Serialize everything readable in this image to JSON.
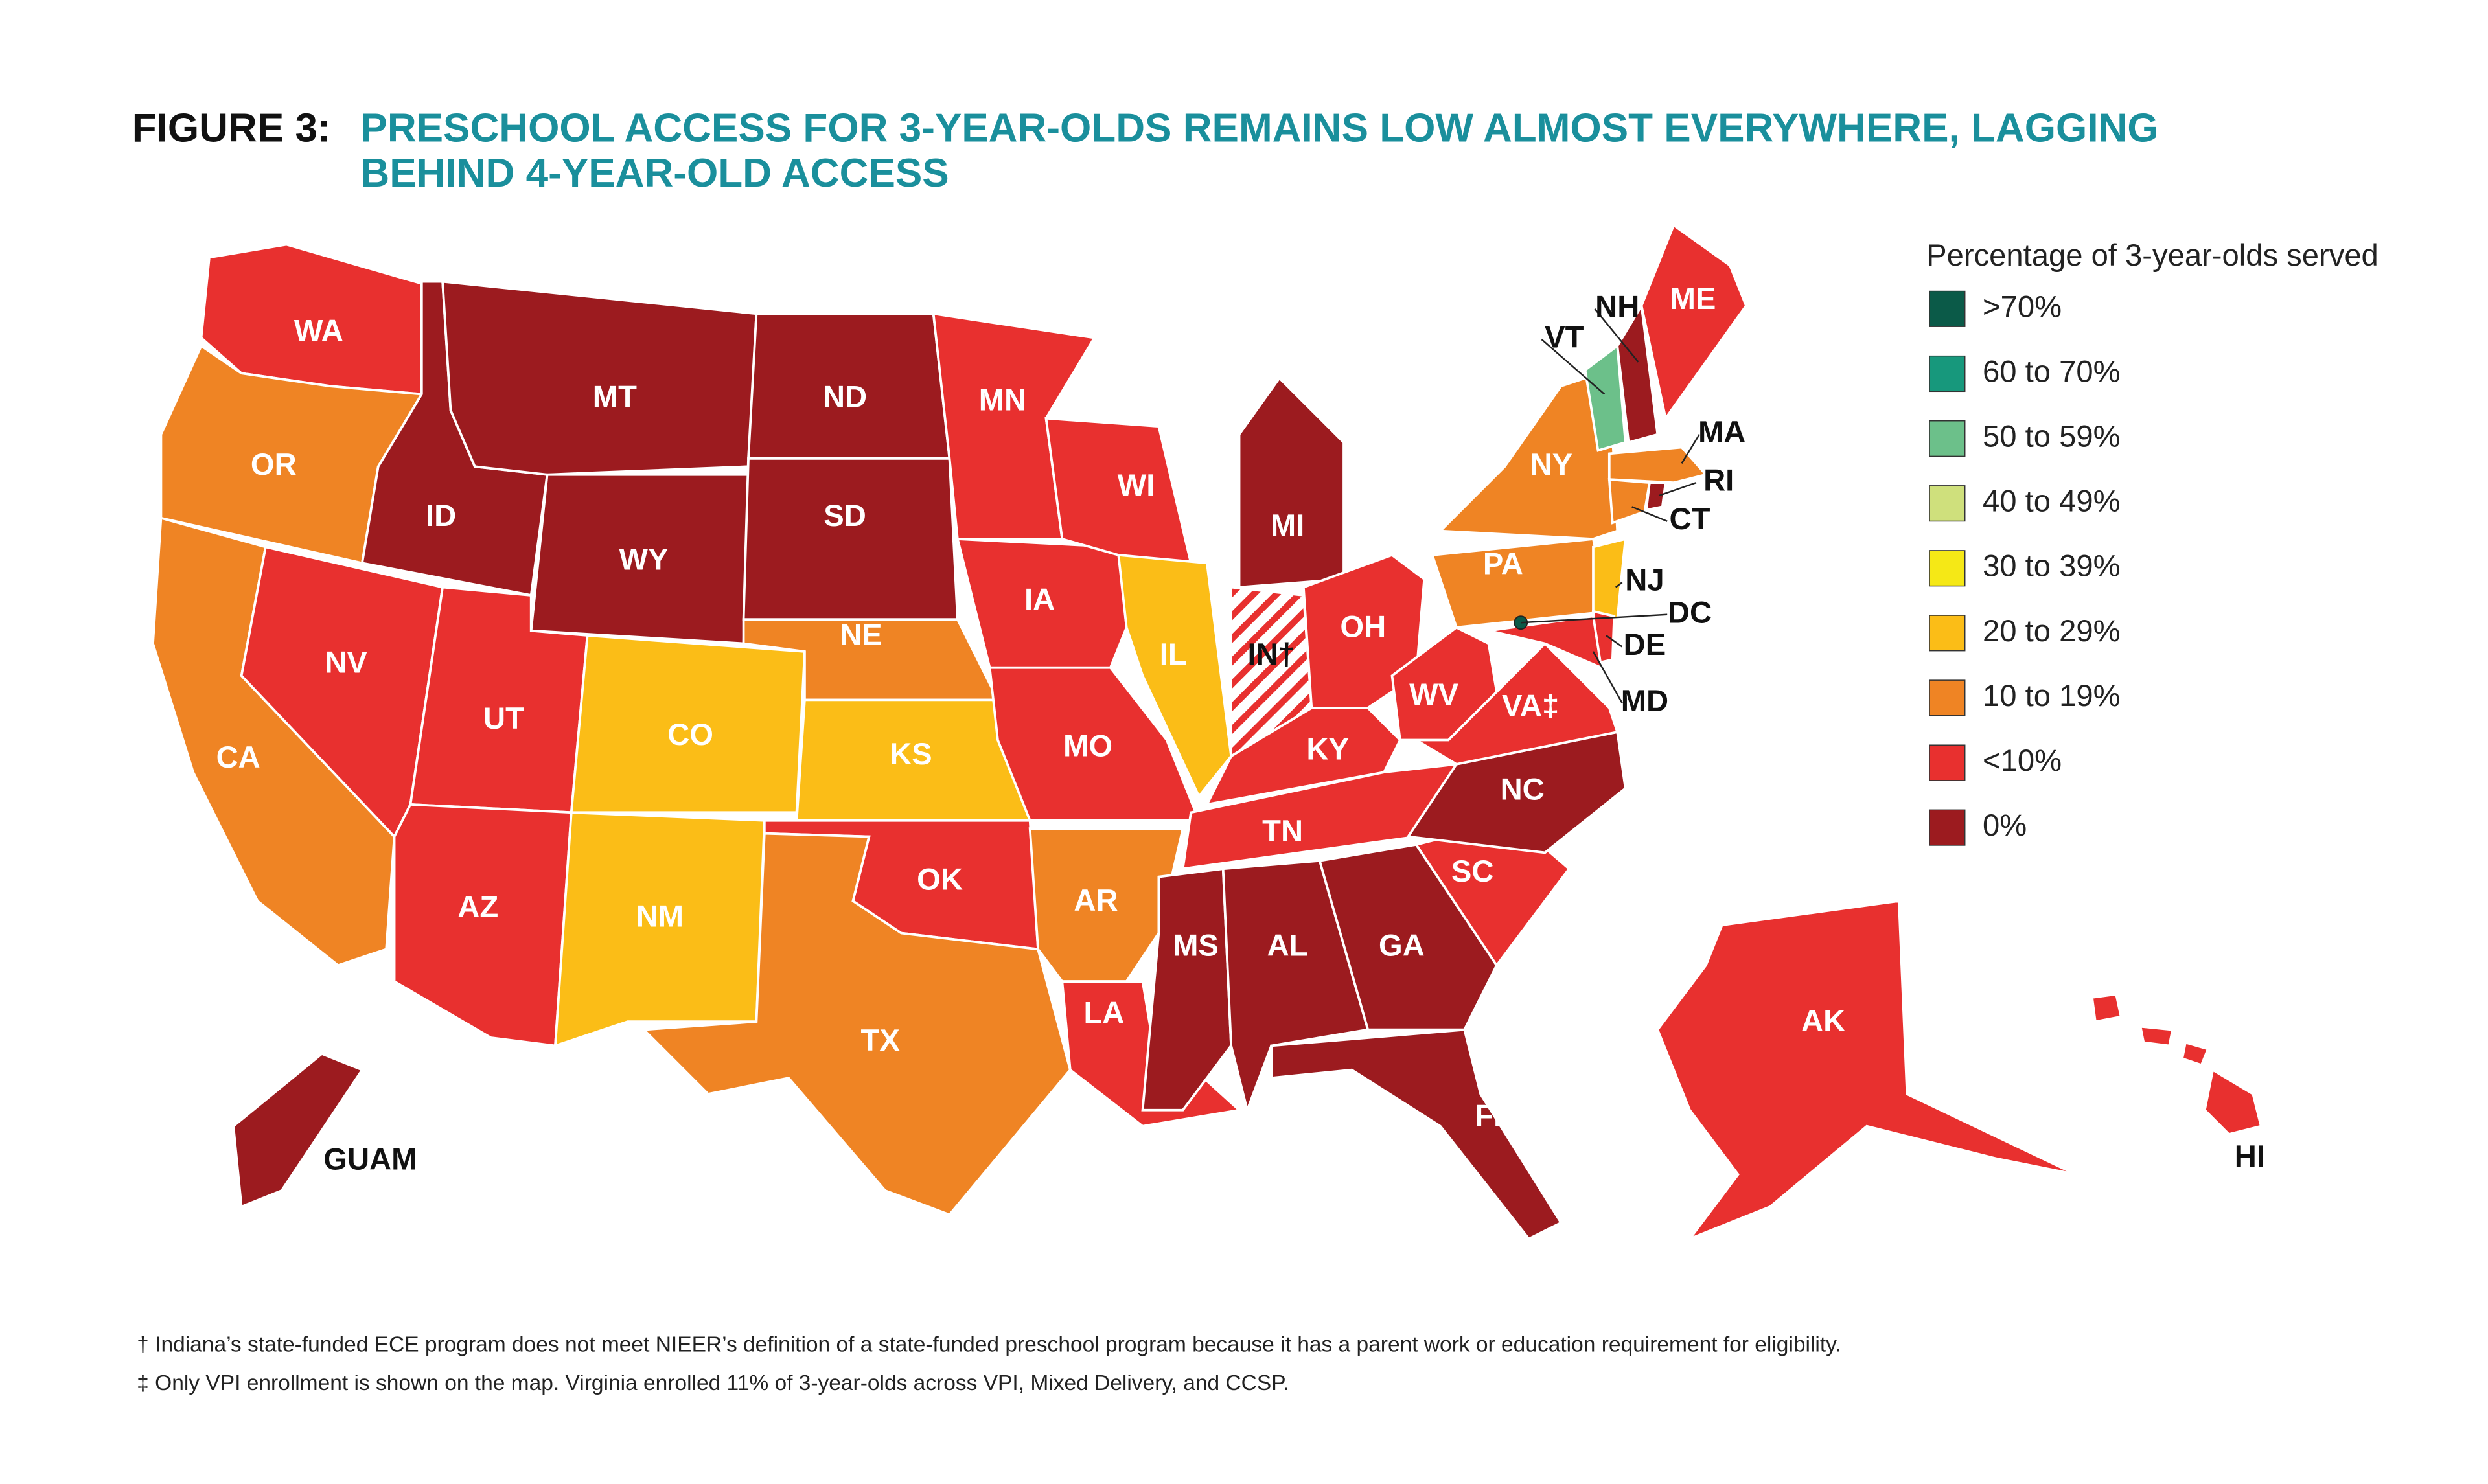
{
  "header": {
    "figure_label": "FIGURE 3:",
    "title_lines": [
      "PRESCHOOL ACCESS FOR 3-YEAR-OLDS REMAINS LOW ALMOST EVERYWHERE, LAGGING",
      "BEHIND 4-YEAR-OLD ACCESS"
    ],
    "title_color": "#1a8f9c"
  },
  "legend": {
    "title": "Percentage of 3-year-olds served",
    "items": [
      {
        "label": ">70%",
        "color": "#0b5a48"
      },
      {
        "label": "60 to 70%",
        "color": "#17987c"
      },
      {
        "label": "50 to 59%",
        "color": "#6cc08a"
      },
      {
        "label": "40 to 49%",
        "color": "#cfe07c"
      },
      {
        "label": "30 to 39%",
        "color": "#f5e816"
      },
      {
        "label": "20 to 29%",
        "color": "#fbbd17"
      },
      {
        "label": "10 to 19%",
        "color": "#ef8424"
      },
      {
        "label": "<10%",
        "color": "#e8302f"
      },
      {
        "label": "0%",
        "color": "#9c1b1f"
      }
    ]
  },
  "states": [
    {
      "label": "WA",
      "color": "#e8302f"
    },
    {
      "label": "OR",
      "color": "#ef8424"
    },
    {
      "label": "CA",
      "color": "#ef8424"
    },
    {
      "label": "NV",
      "color": "#e8302f"
    },
    {
      "label": "ID",
      "color": "#9c1b1f"
    },
    {
      "label": "MT",
      "color": "#9c1b1f"
    },
    {
      "label": "WY",
      "color": "#9c1b1f"
    },
    {
      "label": "UT",
      "color": "#e8302f"
    },
    {
      "label": "AZ",
      "color": "#e8302f"
    },
    {
      "label": "CO",
      "color": "#fbbd17"
    },
    {
      "label": "NM",
      "color": "#fbbd17"
    },
    {
      "label": "ND",
      "color": "#9c1b1f"
    },
    {
      "label": "SD",
      "color": "#9c1b1f"
    },
    {
      "label": "NE",
      "color": "#ef8424"
    },
    {
      "label": "KS",
      "color": "#fbbd17"
    },
    {
      "label": "OK",
      "color": "#e8302f"
    },
    {
      "label": "TX",
      "color": "#ef8424"
    },
    {
      "label": "MN",
      "color": "#e8302f"
    },
    {
      "label": "IA",
      "color": "#e8302f"
    },
    {
      "label": "MO",
      "color": "#e8302f"
    },
    {
      "label": "AR",
      "color": "#ef8424"
    },
    {
      "label": "LA",
      "color": "#e8302f"
    },
    {
      "label": "WI",
      "color": "#e8302f"
    },
    {
      "label": "IL",
      "color": "#fbbd17"
    },
    {
      "label": "IN†",
      "color": "#e8302f",
      "pattern": "hatch"
    },
    {
      "label": "MI",
      "color": "#9c1b1f"
    },
    {
      "label": "OH",
      "color": "#e8302f"
    },
    {
      "label": "KY",
      "color": "#e8302f"
    },
    {
      "label": "TN",
      "color": "#e8302f"
    },
    {
      "label": "MS",
      "color": "#9c1b1f"
    },
    {
      "label": "AL",
      "color": "#9c1b1f"
    },
    {
      "label": "GA",
      "color": "#9c1b1f"
    },
    {
      "label": "FL",
      "color": "#9c1b1f"
    },
    {
      "label": "SC",
      "color": "#e8302f"
    },
    {
      "label": "NC",
      "color": "#9c1b1f"
    },
    {
      "label": "VA‡",
      "color": "#e8302f"
    },
    {
      "label": "WV",
      "color": "#e8302f"
    },
    {
      "label": "PA",
      "color": "#ef8424"
    },
    {
      "label": "NY",
      "color": "#ef8424"
    },
    {
      "label": "NJ",
      "color": "#fbbd17"
    },
    {
      "label": "DE",
      "color": "#e8302f"
    },
    {
      "label": "MD",
      "color": "#e8302f"
    },
    {
      "label": "DC",
      "color": "#0b5a48"
    },
    {
      "label": "VT",
      "color": "#6cc08a"
    },
    {
      "label": "NH",
      "color": "#9c1b1f"
    },
    {
      "label": "ME",
      "color": "#e8302f"
    },
    {
      "label": "MA",
      "color": "#ef8424"
    },
    {
      "label": "RI",
      "color": "#9c1b1f"
    },
    {
      "label": "CT",
      "color": "#ef8424"
    },
    {
      "label": "AK",
      "color": "#e8302f"
    },
    {
      "label": "HI",
      "color": "#e8302f"
    },
    {
      "label": "GUAM",
      "color": "#9c1b1f"
    }
  ],
  "footnotes": [
    "†  Indiana’s state-funded ECE program does not meet NIEER’s definition of a state-funded preschool program because it has a parent work or education requirement for eligibility.",
    "‡  Only VPI enrollment is shown on the map. Virginia enrolled 11% of 3-year-olds across VPI, Mixed Delivery, and CCSP."
  ]
}
